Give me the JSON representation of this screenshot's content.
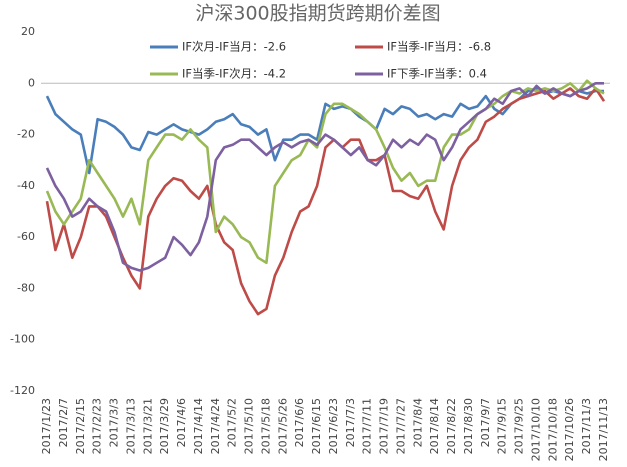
{
  "chart_data": {
    "type": "line",
    "title": "沪深300股指期货跨期价差图",
    "categories": [
      "2017/1/23",
      null,
      "2017/2/7",
      null,
      "2017/2/15",
      null,
      "2017/2/23",
      null,
      "2017/3/3",
      null,
      "2017/3/13",
      null,
      "2017/3/21",
      null,
      "2017/3/29",
      null,
      "2017/4/6",
      null,
      "2017/4/14",
      null,
      "2017/4/24",
      null,
      "2017/5/2",
      null,
      "2017/5/10",
      null,
      "2017/5/18",
      null,
      "2017/5/26",
      null,
      "2017/6/6",
      null,
      "2017/6/15",
      null,
      "2017/6/23",
      null,
      "2017/7/3",
      null,
      "2017/7/11",
      null,
      "2017/7/19",
      null,
      "2017/7/27",
      null,
      "2017/8/4",
      null,
      "2017/8/14",
      null,
      "2017/8/22",
      null,
      "2017/8/30",
      null,
      "2017/9/7",
      null,
      "2017/9/15",
      null,
      "2017/9/25",
      null,
      "2017/10/10",
      null,
      "2017/10/18",
      null,
      "2017/10/26",
      null,
      "2017/11/3",
      null,
      "2017/11/13"
    ],
    "series": [
      {
        "name": "IF次月-IF当月：-2.6",
        "color": "#4a7ebb",
        "values": [
          -5,
          -12,
          -15,
          -18,
          -20,
          -35,
          -14,
          -15,
          -17,
          -20,
          -25,
          -26,
          -19,
          -20,
          -18,
          -16,
          -18,
          -19,
          -20,
          -18,
          -15,
          -14,
          -12,
          -16,
          -17,
          -20,
          -18,
          -30,
          -22,
          -22,
          -20,
          -20,
          -22,
          -8,
          -10,
          -9,
          -10,
          -13,
          -15,
          -18,
          -10,
          -12,
          -9,
          -10,
          -13,
          -12,
          -14,
          -12,
          -13,
          -8,
          -10,
          -9,
          -5,
          -10,
          -12,
          -8,
          -6,
          -3,
          -2,
          -4,
          -3,
          -4,
          -5,
          -3,
          -4,
          -3,
          -3
        ]
      },
      {
        "name": "IF当季-IF当月：-6.8",
        "color": "#be4b48",
        "values": [
          -46,
          -65,
          -55,
          -68,
          -60,
          -48,
          -48,
          -52,
          -60,
          -68,
          -75,
          -80,
          -52,
          -45,
          -40,
          -37,
          -38,
          -42,
          -45,
          -40,
          -55,
          -62,
          -65,
          -78,
          -85,
          -90,
          -88,
          -75,
          -68,
          -58,
          -50,
          -48,
          -40,
          -25,
          -22,
          -25,
          -22,
          -22,
          -30,
          -30,
          -28,
          -42,
          -42,
          -44,
          -45,
          -40,
          -50,
          -57,
          -40,
          -30,
          -25,
          -22,
          -15,
          -13,
          -10,
          -8,
          -6,
          -5,
          -4,
          -3,
          -6,
          -4,
          -2,
          -5,
          -6,
          -2,
          -7
        ]
      },
      {
        "name": "IF当季-IF次月：-4.2",
        "color": "#98b954",
        "values": [
          -42,
          -50,
          -55,
          -50,
          -45,
          -30,
          -35,
          -40,
          -45,
          -52,
          -45,
          -55,
          -30,
          -25,
          -20,
          -20,
          -22,
          -18,
          -22,
          -25,
          -58,
          -52,
          -55,
          -60,
          -62,
          -68,
          -70,
          -40,
          -35,
          -30,
          -28,
          -22,
          -25,
          -12,
          -8,
          -8,
          -10,
          -12,
          -15,
          -18,
          -25,
          -33,
          -38,
          -35,
          -40,
          -38,
          -38,
          -25,
          -20,
          -20,
          -18,
          -12,
          -10,
          -8,
          -5,
          -3,
          -4,
          -2,
          -3,
          -2,
          -3,
          -2,
          0,
          -3,
          1,
          -2,
          -4
        ]
      },
      {
        "name": "IF下季-IF当季：0.4",
        "color": "#7d60a0",
        "values": [
          -33,
          -40,
          -45,
          -52,
          -50,
          -45,
          -48,
          -50,
          -58,
          -70,
          -72,
          -73,
          -72,
          -70,
          -68,
          -60,
          -63,
          -67,
          -62,
          -52,
          -30,
          -25,
          -24,
          -22,
          -22,
          -25,
          -28,
          -25,
          -23,
          -25,
          -23,
          -22,
          -24,
          -20,
          -22,
          -25,
          -28,
          -25,
          -30,
          -32,
          -28,
          -22,
          -25,
          -22,
          -24,
          -20,
          -22,
          -30,
          -25,
          -18,
          -15,
          -12,
          -10,
          -6,
          -8,
          -3,
          -2,
          -5,
          -1,
          -4,
          -2,
          -4,
          -5,
          -3,
          -2,
          0,
          0
        ]
      }
    ],
    "ylim": [
      -120,
      20
    ],
    "yticks": [
      20,
      0,
      -20,
      -40,
      -60,
      -80,
      -100,
      -120
    ]
  }
}
